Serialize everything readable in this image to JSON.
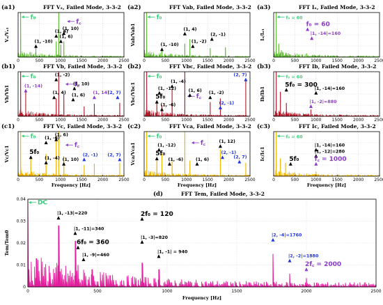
{
  "colors": {
    "green": "#5cb82e",
    "red": "#b31b2a",
    "orange": "#f0b400",
    "magenta": "#e01e9b",
    "purple": "#8a3cc8",
    "blue": "#1f33e0",
    "mint": "#34d178",
    "black": "#000000"
  },
  "chart_data": [
    {
      "id": "a1",
      "type": "line",
      "label": "(a1)",
      "title": "FFT Vₐ, Failed Mode, 3-3-2",
      "ylabel": "Vₐ/Vₐ₁",
      "xlabel": "",
      "color": "#5cb82e",
      "xlim": [
        0,
        2500
      ],
      "xticks": [
        "0",
        "500",
        "1000",
        "1500",
        "2000",
        "2500"
      ],
      "ymax": 1.0,
      "peaks": [
        {
          "f": 60,
          "a": 1.0
        },
        {
          "f": 420,
          "a": 0.26
        },
        {
          "f": 900,
          "a": 0.35
        },
        {
          "f": 960,
          "a": 1.0
        },
        {
          "f": 1010,
          "a": 0.28
        },
        {
          "f": 1080,
          "a": 0.35
        }
      ],
      "annotations": [
        {
          "text": "f₀",
          "f": 60,
          "a": 0.9,
          "color": "#34d178",
          "arrow": "left",
          "big": true
        },
        {
          "text": "(1, -10)",
          "f": 420,
          "a": 0.27,
          "color": "#000000"
        },
        {
          "text": "(1, 4)",
          "f": 900,
          "a": 0.5,
          "color": "#000000"
        },
        {
          "text": "(1, 6)",
          "f": 1010,
          "a": 0.38,
          "color": "#000000"
        },
        {
          "text": "(1, 10)",
          "f": 1080,
          "a": 0.56,
          "color": "#000000"
        },
        {
          "text": "f꜀",
          "f": 1140,
          "a": 0.8,
          "color": "#8a3cc8",
          "arrow": "left",
          "big": true
        }
      ]
    },
    {
      "id": "a2",
      "type": "line",
      "label": "(a2)",
      "title": "FFT Vab, Failed Mode, 3-3-2",
      "ylabel": "Vab/Vab1",
      "xlabel": "",
      "color": "#5cb82e",
      "xlim": [
        0,
        2500
      ],
      "xticks": [
        "0",
        "500",
        "1000",
        "1500",
        "2000",
        "2500"
      ],
      "ymax": 1.0,
      "peaks": [
        {
          "f": 60,
          "a": 1.0
        },
        {
          "f": 420,
          "a": 0.2
        },
        {
          "f": 960,
          "a": 0.3
        },
        {
          "f": 1080,
          "a": 0.4
        },
        {
          "f": 1560,
          "a": 0.2
        },
        {
          "f": 1920,
          "a": 0.22
        }
      ],
      "annotations": [
        {
          "text": "f₀",
          "f": 60,
          "a": 0.9,
          "color": "#34d178",
          "arrow": "left",
          "big": true
        },
        {
          "text": "(1, -10)",
          "f": 420,
          "a": 0.2,
          "color": "#000000"
        },
        {
          "text": "(1, 4)",
          "f": 960,
          "a": 0.55,
          "color": "#000000"
        },
        {
          "text": "(2, -1)",
          "f": 1600,
          "a": 0.43,
          "color": "#000000"
        },
        {
          "text": "(1, -2)",
          "f": 1150,
          "a": 0.27,
          "color": "#000000"
        }
      ]
    },
    {
      "id": "a3",
      "type": "line",
      "label": "(a3)",
      "title": "FFT Iₐ, Failed Mode, 3-3-2",
      "ylabel": "Iₐ/Iₐ₁",
      "xlabel": "",
      "color": "#5cb82e",
      "xlim": [
        0,
        2500
      ],
      "xticks": [
        "0",
        "500",
        "1000",
        "1500",
        "2000",
        "2500"
      ],
      "ymax": 1.0,
      "peaks": [
        {
          "f": 60,
          "a": 1.0
        },
        {
          "f": 120,
          "a": 0.3
        },
        {
          "f": 180,
          "a": 0.15
        },
        {
          "f": 780,
          "a": 0.08
        }
      ],
      "annotations": [
        {
          "text": "f₀ = 60",
          "f": 60,
          "a": 0.9,
          "color": "#34d178",
          "arrow": "left",
          "big": false
        },
        {
          "text": "f₀ = 60",
          "f": 800,
          "a": 0.65,
          "color": "#8a3cc8",
          "big": true
        },
        {
          "text": "|1, -14|=160",
          "f": 900,
          "a": 0.45,
          "color": "#8a3cc8"
        }
      ]
    },
    {
      "id": "b1",
      "type": "line",
      "label": "(b1)",
      "title": "FFT Vb, Failed Mode, 3-3-2",
      "ylabel": "Vb/Vb1",
      "xlabel": "",
      "color": "#b31b2a",
      "xlim": [
        0,
        2500
      ],
      "xticks": [
        "0",
        "500",
        "1000",
        "1500",
        "2000",
        "2500"
      ],
      "ymax": 1.0,
      "peaks": [
        {
          "f": 60,
          "a": 1.0
        },
        {
          "f": 180,
          "a": 0.55
        },
        {
          "f": 900,
          "a": 0.4
        },
        {
          "f": 960,
          "a": 1.0
        },
        {
          "f": 1080,
          "a": 0.5
        },
        {
          "f": 1560,
          "a": 0.22
        },
        {
          "f": 1800,
          "a": 0.28
        },
        {
          "f": 2400,
          "a": 0.3
        }
      ],
      "annotations": [
        {
          "text": "f₀",
          "f": 60,
          "a": 0.9,
          "color": "#34d178",
          "arrow": "left",
          "big": true
        },
        {
          "text": "(1, -14)",
          "f": 180,
          "a": 0.6,
          "color": "#8a3cc8"
        },
        {
          "text": "(1, -2)",
          "f": 900,
          "a": 0.85,
          "color": "#000000"
        },
        {
          "text": "(1, 4)",
          "f": 850,
          "a": 0.45,
          "color": "#000000"
        },
        {
          "text": "f꜀",
          "f": 1100,
          "a": 0.72,
          "color": "#8a3cc8",
          "arrow": "left",
          "big": true
        },
        {
          "text": "(1, 6)",
          "f": 1300,
          "a": 0.4,
          "color": "#000000"
        },
        {
          "text": "(1, 10)",
          "f": 1330,
          "a": 0.65,
          "color": "#000000"
        },
        {
          "text": "(1, 14)",
          "f": 1800,
          "a": 0.45,
          "color": "#8a3cc8"
        },
        {
          "text": "(2, 7)",
          "f": 2350,
          "a": 0.45,
          "color": "#1f33e0"
        }
      ]
    },
    {
      "id": "b2",
      "type": "line",
      "label": "(b2)",
      "title": "FFT Vbc, Failed Mode, 3-3-2",
      "ylabel": "Vbc/Vbc1",
      "xlabel": "",
      "color": "#b31b2a",
      "xlim": [
        0,
        2500
      ],
      "xticks": [
        "0",
        "500",
        "1000",
        "1500",
        "2000",
        "2500"
      ],
      "ymax": 1.0,
      "peaks": [
        {
          "f": 60,
          "a": 1.0
        },
        {
          "f": 300,
          "a": 0.3
        },
        {
          "f": 420,
          "a": 0.25
        },
        {
          "f": 660,
          "a": 0.6
        },
        {
          "f": 960,
          "a": 1.0
        },
        {
          "f": 1560,
          "a": 0.32
        },
        {
          "f": 1800,
          "a": 0.4
        },
        {
          "f": 2400,
          "a": 0.8
        }
      ],
      "annotations": [
        {
          "text": "f₀",
          "f": 60,
          "a": 0.9,
          "color": "#34d178",
          "arrow": "left",
          "big": true
        },
        {
          "text": "(1, -12)",
          "f": 360,
          "a": 0.55,
          "color": "#000000"
        },
        {
          "text": "(1, -4)",
          "f": 660,
          "a": 0.7,
          "color": "#000000"
        },
        {
          "text": "5f₀",
          "f": 300,
          "a": 0.35,
          "color": "#000000",
          "big": true
        },
        {
          "text": "(1, -6)",
          "f": 420,
          "a": 0.18,
          "color": "#000000"
        },
        {
          "text": "f꜀",
          "f": 1000,
          "a": 0.45,
          "color": "#8a3cc8",
          "arrow": "left",
          "big": true
        },
        {
          "text": "(1, 6)",
          "f": 1080,
          "a": 0.5,
          "color": "#000000"
        },
        {
          "text": "(1, -2)",
          "f": 1560,
          "a": 0.45,
          "color": "#000000"
        },
        {
          "text": "(2, -1)",
          "f": 1800,
          "a": 0.22,
          "color": "#1f33e0"
        },
        {
          "text": "(2, 7)",
          "f": 2400,
          "a": 0.85,
          "color": "#1f33e0"
        }
      ]
    },
    {
      "id": "b3",
      "type": "line",
      "label": "(b3)",
      "title": "FFT Ib, Failed Mode, 3-3-2",
      "ylabel": "Ib/Ib1",
      "xlabel": "",
      "color": "#b31b2a",
      "xlim": [
        0,
        2500
      ],
      "xticks": [
        "0",
        "500",
        "1000",
        "1500",
        "2000",
        "2500"
      ],
      "ymax": 1.0,
      "peaks": [
        {
          "f": 60,
          "a": 1.0
        },
        {
          "f": 160,
          "a": 0.55
        },
        {
          "f": 300,
          "a": 0.3
        },
        {
          "f": 880,
          "a": 0.15
        }
      ],
      "annotations": [
        {
          "text": "f₀ = 60",
          "f": 60,
          "a": 0.9,
          "color": "#34d178",
          "arrow": "left",
          "big": false
        },
        {
          "text": "5f₀ = 300",
          "f": 300,
          "a": 0.62,
          "color": "#000000",
          "big": true
        },
        {
          "text": "|1, -14|=160",
          "f": 1000,
          "a": 0.55,
          "color": "#000000"
        },
        {
          "text": "|1, -2|=880",
          "f": 880,
          "a": 0.25,
          "color": "#8a3cc8"
        }
      ]
    },
    {
      "id": "c1",
      "type": "line",
      "label": "(c1)",
      "title": "FFT Vc, Failed Mode, 3-3-2",
      "ylabel": "Vc/Vc1",
      "xlabel": "Frequency [Hz]",
      "color": "#f0b400",
      "xlim": [
        0,
        2500
      ],
      "xticks": [
        "0",
        "500",
        "1000",
        "1500",
        "2000",
        "2500"
      ],
      "ymax": 1.0,
      "peaks": [
        {
          "f": 60,
          "a": 1.0
        },
        {
          "f": 300,
          "a": 0.4
        },
        {
          "f": 660,
          "a": 0.5
        },
        {
          "f": 900,
          "a": 0.9
        },
        {
          "f": 960,
          "a": 1.0
        },
        {
          "f": 1080,
          "a": 0.45
        },
        {
          "f": 1560,
          "a": 0.25
        },
        {
          "f": 1800,
          "a": 0.28
        },
        {
          "f": 2400,
          "a": 0.3
        }
      ],
      "annotations": [
        {
          "text": "f₀",
          "f": 60,
          "a": 0.9,
          "color": "#34d178",
          "arrow": "left",
          "big": true
        },
        {
          "text": "(1, -6)",
          "f": 660,
          "a": 0.78,
          "color": "#000000"
        },
        {
          "text": "(1, 6)",
          "f": 900,
          "a": 0.85,
          "color": "#000000"
        },
        {
          "text": "f꜀",
          "f": 1100,
          "a": 0.7,
          "color": "#8a3cc8",
          "arrow": "left",
          "big": true
        },
        {
          "text": "5f₀",
          "f": 300,
          "a": 0.45,
          "color": "#000000",
          "big": true
        },
        {
          "text": "(1, -4)",
          "f": 660,
          "a": 0.33,
          "color": "#000000"
        },
        {
          "text": "(1, 10)",
          "f": 1080,
          "a": 0.3,
          "color": "#000000"
        },
        {
          "text": "(2, -1)",
          "f": 1560,
          "a": 0.4,
          "color": "#1f33e0"
        },
        {
          "text": "(2, 7)",
          "f": 2400,
          "a": 0.4,
          "color": "#1f33e0"
        }
      ]
    },
    {
      "id": "c2",
      "type": "line",
      "label": "(c2)",
      "title": "FFT Vca, Failed Mode, 3-3-2",
      "ylabel": "Vca/Vca1",
      "xlabel": "Frequency [Hz]",
      "color": "#f0b400",
      "xlim": [
        0,
        2500
      ],
      "xticks": [
        "0",
        "500",
        "1000",
        "1500",
        "2000",
        "2500"
      ],
      "ymax": 1.0,
      "peaks": [
        {
          "f": 60,
          "a": 1.0
        },
        {
          "f": 300,
          "a": 0.4
        },
        {
          "f": 420,
          "a": 0.5
        },
        {
          "f": 660,
          "a": 0.4
        },
        {
          "f": 960,
          "a": 1.0
        },
        {
          "f": 1080,
          "a": 0.35
        },
        {
          "f": 1800,
          "a": 0.6
        },
        {
          "f": 2400,
          "a": 0.3
        }
      ],
      "annotations": [
        {
          "text": "f₀",
          "f": 60,
          "a": 0.9,
          "color": "#34d178",
          "arrow": "left",
          "big": true
        },
        {
          "text": "(1, -12)",
          "f": 350,
          "a": 0.62,
          "color": "#000000"
        },
        {
          "text": "f꜀",
          "f": 1100,
          "a": 0.75,
          "color": "#8a3cc8",
          "arrow": "left",
          "big": true
        },
        {
          "text": "(1, 12)",
          "f": 1800,
          "a": 0.7,
          "color": "#000000"
        },
        {
          "text": "5f₀",
          "f": 300,
          "a": 0.42,
          "color": "#000000",
          "big": true
        },
        {
          "text": "(1, -6)",
          "f": 600,
          "a": 0.3,
          "color": "#000000"
        },
        {
          "text": "(1, 6)",
          "f": 1250,
          "a": 0.3,
          "color": "#000000"
        },
        {
          "text": "(2, -1)",
          "f": 1850,
          "a": 0.45,
          "color": "#1f33e0"
        },
        {
          "text": "(2, 7)",
          "f": 2250,
          "a": 0.35,
          "color": "#1f33e0"
        }
      ]
    },
    {
      "id": "c3",
      "type": "line",
      "label": "(c3)",
      "title": "FFT Ic, Failed Mode, 3-3-2",
      "ylabel": "Ic/Ic1",
      "xlabel": "Frequency [Hz]",
      "color": "#f0b400",
      "xlim": [
        0,
        2500
      ],
      "xticks": [
        "0",
        "500",
        "1000",
        "1500",
        "2000",
        "2500"
      ],
      "ymax": 1.0,
      "peaks": [
        {
          "f": 60,
          "a": 1.0
        },
        {
          "f": 160,
          "a": 0.4
        },
        {
          "f": 280,
          "a": 0.3
        },
        {
          "f": 1000,
          "a": 0.1
        }
      ],
      "annotations": [
        {
          "text": "f₀ = 60",
          "f": 60,
          "a": 0.9,
          "color": "#34d178",
          "arrow": "left",
          "big": false
        },
        {
          "text": "|1, -14|=160",
          "f": 1000,
          "a": 0.62,
          "color": "#000000"
        },
        {
          "text": "|1, -12|=280",
          "f": 1000,
          "a": 0.48,
          "color": "#000000"
        },
        {
          "text": "5f₀",
          "f": 400,
          "a": 0.3,
          "color": "#000000",
          "big": true
        },
        {
          "text": "f꜀ = 1000",
          "f": 1000,
          "a": 0.3,
          "color": "#8a3cc8",
          "big": true
        }
      ]
    },
    {
      "id": "d",
      "type": "line",
      "label": "(d)",
      "title": "FFT Tem, Failed Mode, 3-3-2",
      "ylabel": "Tem/Tem0",
      "xlabel": "Frequency [Hz]",
      "color": "#e01e9b",
      "xlim": [
        0,
        2500
      ],
      "xticks": [
        "0",
        "500",
        "1000",
        "1500",
        "2000",
        "2500"
      ],
      "ylim": [
        0,
        0.04
      ],
      "yticks": [
        "0",
        "0.01",
        "0.02",
        "0.03",
        "0.04"
      ],
      "peaks": [
        {
          "f": 0,
          "a": 0.04
        },
        {
          "f": 60,
          "a": 0.013
        },
        {
          "f": 120,
          "a": 0.009
        },
        {
          "f": 220,
          "a": 0.028
        },
        {
          "f": 340,
          "a": 0.021
        },
        {
          "f": 360,
          "a": 0.01
        },
        {
          "f": 460,
          "a": 0.008
        },
        {
          "f": 820,
          "a": 0.011
        },
        {
          "f": 940,
          "a": 0.008
        },
        {
          "f": 1760,
          "a": 0.015
        },
        {
          "f": 1880,
          "a": 0.006
        },
        {
          "f": 2000,
          "a": 0.004
        }
      ],
      "annotations": [
        {
          "text": "DC",
          "f": 0,
          "a": 0.0385,
          "color": "#34d178",
          "arrow": "left",
          "big": true
        },
        {
          "text": "|1, -13|=220",
          "f": 220,
          "a": 0.032,
          "color": "#000000"
        },
        {
          "text": "2f₀ = 120",
          "f": 820,
          "a": 0.0315,
          "color": "#000000",
          "big": true
        },
        {
          "text": "|1, -11|=340",
          "f": 340,
          "a": 0.025,
          "color": "#000000"
        },
        {
          "text": "6f₀ = 360",
          "f": 360,
          "a": 0.0185,
          "color": "#000000",
          "big": true
        },
        {
          "text": "|1, -9|=460",
          "f": 400,
          "a": 0.013,
          "color": "#000000"
        },
        {
          "text": "|1, -3|=820",
          "f": 820,
          "a": 0.021,
          "color": "#000000"
        },
        {
          "text": "|1, -1| = 940",
          "f": 940,
          "a": 0.0145,
          "color": "#000000"
        },
        {
          "text": "|2, -4|=1760",
          "f": 1760,
          "a": 0.022,
          "color": "#1f33e0"
        },
        {
          "text": "|2, -2|=1880",
          "f": 1880,
          "a": 0.0125,
          "color": "#1f33e0"
        },
        {
          "text": "2f꜀ = 2000",
          "f": 2000,
          "a": 0.0085,
          "color": "#8a3cc8",
          "big": true
        }
      ]
    }
  ]
}
